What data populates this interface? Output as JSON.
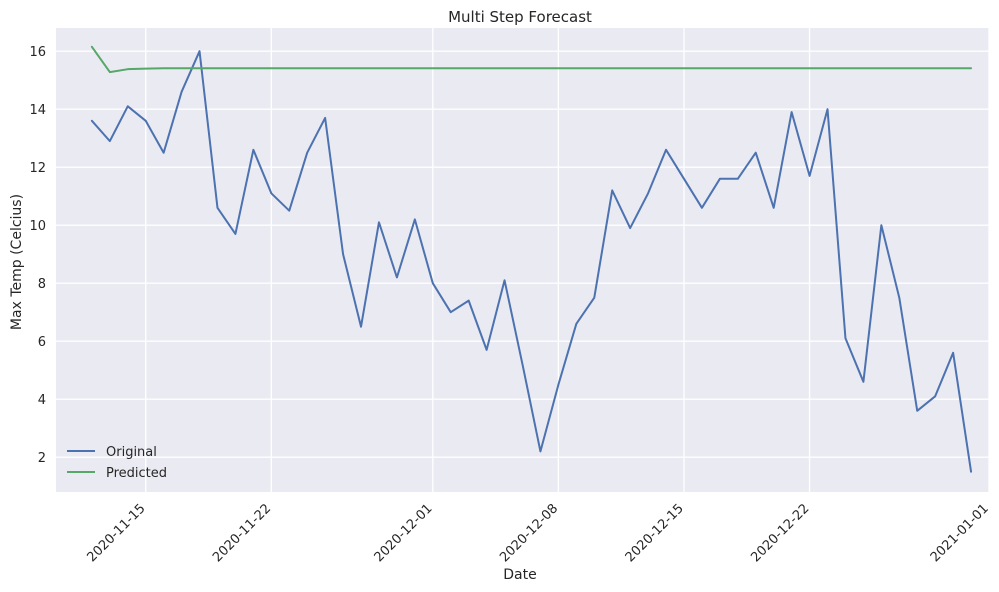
{
  "chart_data": {
    "type": "line",
    "title": "Multi Step Forecast",
    "xlabel": "Date",
    "ylabel": "Max Temp (Celcius)",
    "x_start": "2020-11-12",
    "x_range": [
      "2020-11-10",
      "2021-01-01"
    ],
    "ylim": [
      0.8,
      16.8
    ],
    "grid": true,
    "legend_position": "lower-left",
    "x_ticks": [
      "2020-11-15",
      "2020-11-22",
      "2020-12-01",
      "2020-12-08",
      "2020-12-15",
      "2020-12-22",
      "2021-01-01"
    ],
    "y_ticks": [
      2,
      4,
      6,
      8,
      10,
      12,
      14,
      16
    ],
    "series": [
      {
        "name": "Original",
        "color": "#4c72b0",
        "values": [
          13.6,
          12.9,
          14.1,
          13.6,
          12.5,
          14.6,
          16.0,
          10.6,
          9.7,
          12.6,
          11.1,
          10.5,
          12.5,
          13.7,
          9.0,
          6.5,
          10.1,
          8.2,
          10.2,
          8.0,
          7.0,
          7.4,
          5.7,
          8.1,
          5.2,
          2.2,
          4.5,
          6.6,
          7.5,
          11.2,
          9.9,
          11.1,
          12.6,
          11.6,
          10.6,
          11.6,
          11.6,
          12.5,
          10.6,
          13.9,
          11.7,
          14.0,
          6.1,
          4.6,
          10.0,
          7.5,
          3.6,
          4.1,
          5.6,
          1.5
        ]
      },
      {
        "name": "Predicted",
        "color": "#55a868",
        "values": [
          16.15,
          15.28,
          15.38,
          15.4,
          15.41,
          15.41,
          15.41,
          15.41,
          15.41,
          15.41,
          15.41,
          15.41,
          15.41,
          15.41,
          15.41,
          15.41,
          15.41,
          15.41,
          15.41,
          15.41,
          15.41,
          15.41,
          15.41,
          15.41,
          15.41,
          15.41,
          15.41,
          15.41,
          15.41,
          15.41,
          15.41,
          15.41,
          15.41,
          15.41,
          15.41,
          15.41,
          15.41,
          15.41,
          15.41,
          15.41,
          15.41,
          15.41,
          15.41,
          15.41,
          15.41,
          15.41,
          15.41,
          15.41,
          15.41,
          15.41
        ]
      }
    ]
  }
}
